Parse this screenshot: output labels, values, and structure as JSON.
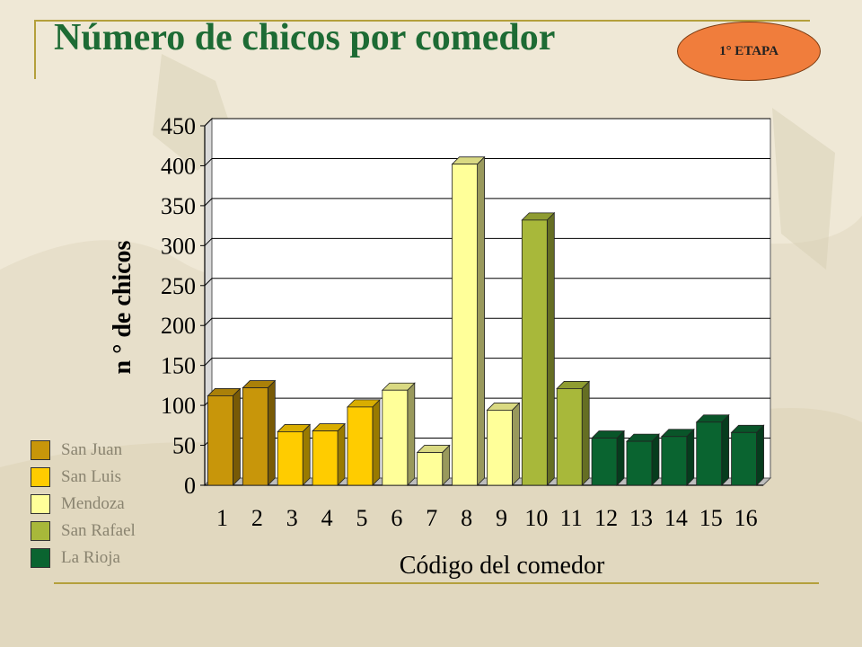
{
  "slide": {
    "title": "Número de chicos por comedor",
    "badge": "1° ETAPA"
  },
  "colors": {
    "title": "#1d6b34",
    "badge": "#f07d3c",
    "background": "#efe8d6"
  },
  "chart_data": {
    "type": "bar",
    "style": "3d",
    "categories": [
      "1",
      "2",
      "3",
      "4",
      "5",
      "6",
      "7",
      "8",
      "9",
      "10",
      "11",
      "12",
      "13",
      "14",
      "15",
      "16"
    ],
    "values": [
      112,
      122,
      67,
      68,
      98,
      119,
      41,
      402,
      94,
      332,
      121,
      59,
      55,
      61,
      79,
      66
    ],
    "group_of_bar": [
      "San Juan",
      "San Juan",
      "San Luis",
      "San Luis",
      "San Luis",
      "Mendoza",
      "Mendoza",
      "Mendoza",
      "Mendoza",
      "San Rafael",
      "San Rafael",
      "La Rioja",
      "La Rioja",
      "La Rioja",
      "La Rioja",
      "La Rioja"
    ],
    "xlabel": "Código del comedor",
    "ylabel": "n ° de chicos",
    "ylim": [
      0,
      450
    ],
    "yticks": [
      "0",
      "50",
      "100",
      "150",
      "200",
      "250",
      "300",
      "350",
      "400",
      "450"
    ],
    "grid": true,
    "legend_position": "left",
    "legend": [
      {
        "name": "San Juan",
        "color": "#c8960a"
      },
      {
        "name": "San Luis",
        "color": "#ffcc00"
      },
      {
        "name": "Mendoza",
        "color": "#ffff99"
      },
      {
        "name": "San Rafael",
        "color": "#a8b83a"
      },
      {
        "name": "La Rioja",
        "color": "#0a6430"
      }
    ]
  }
}
